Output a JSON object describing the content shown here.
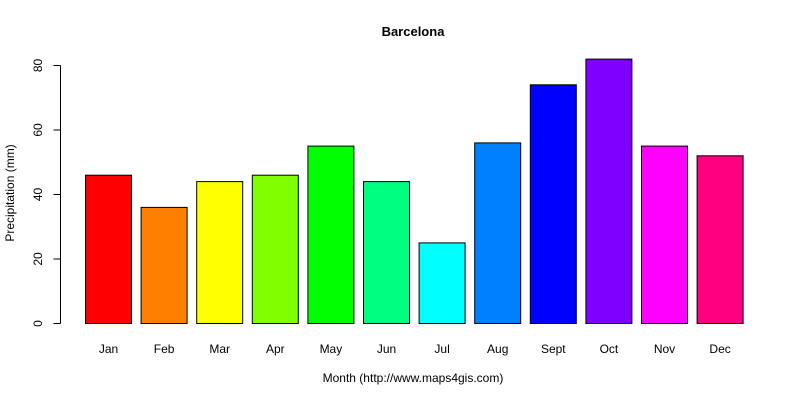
{
  "chart_data": {
    "type": "bar",
    "title": "Barcelona",
    "xlabel": "Month (http://www.maps4gis.com)",
    "ylabel": "Precipitation (mm)",
    "categories": [
      "Jan",
      "Feb",
      "Mar",
      "Apr",
      "May",
      "Jun",
      "Jul",
      "Aug",
      "Sept",
      "Oct",
      "Nov",
      "Dec"
    ],
    "values": [
      46,
      36,
      44,
      46,
      55,
      44,
      25,
      56,
      74,
      82,
      55,
      52
    ],
    "colors": [
      "#FF0000",
      "#FF8000",
      "#FFFF00",
      "#80FF00",
      "#00FF00",
      "#00FF80",
      "#00FFFF",
      "#0080FF",
      "#0000FF",
      "#8000FF",
      "#FF00FF",
      "#FF0080"
    ],
    "ylim": [
      0,
      80
    ],
    "yticks": [
      0,
      20,
      40,
      60,
      80
    ],
    "grid": false,
    "legend": "none"
  }
}
